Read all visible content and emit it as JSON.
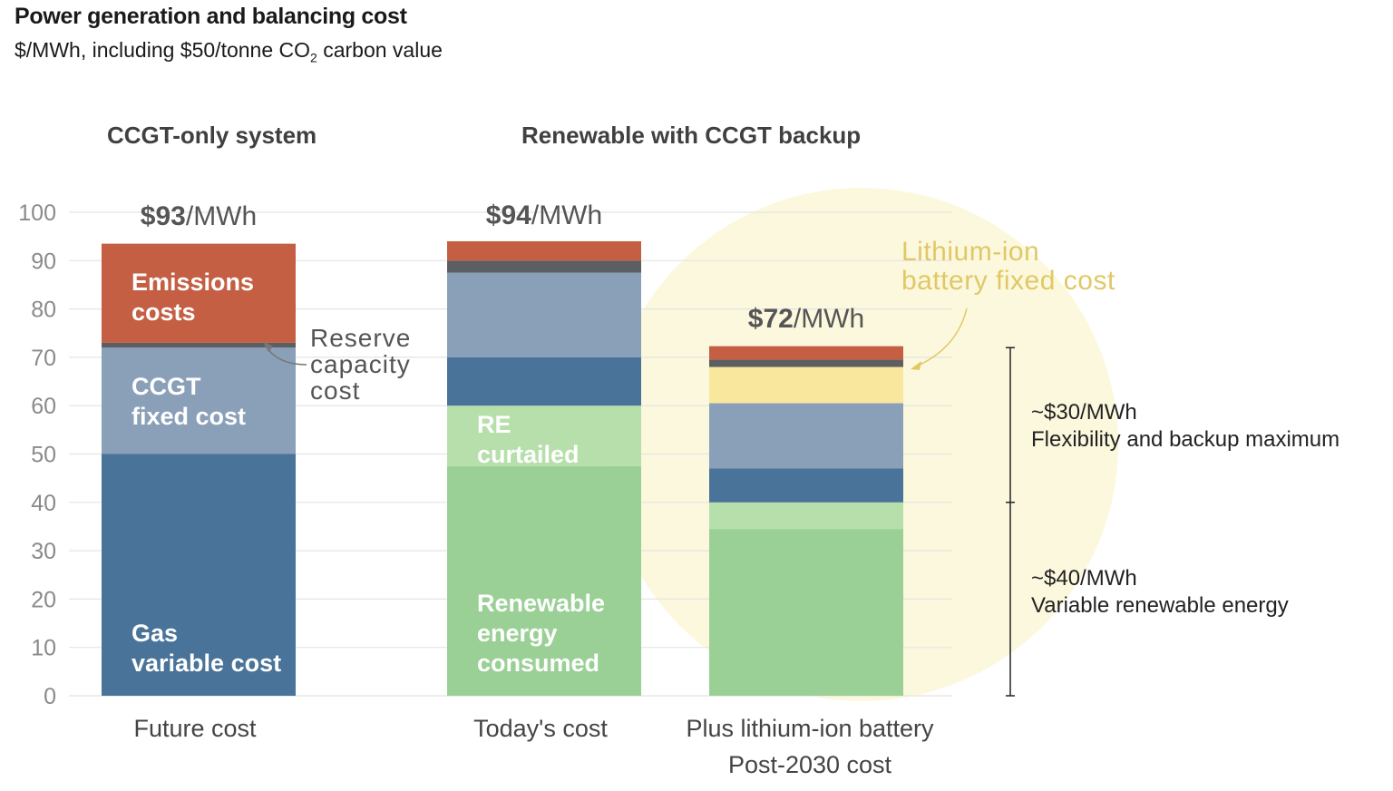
{
  "title": "Power generation and balancing cost",
  "subtitle_before": "$/MWh, including $50/tonne CO",
  "subtitle_sub": "2",
  "subtitle_after": " carbon value",
  "group_titles": [
    "CCGT-only system",
    "Renewable with CCGT backup"
  ],
  "colors": {
    "emissions": "#c45f44",
    "reserve": "#5b5f61",
    "ccgt_fixed": "#8a9fb8",
    "gas_variable": "#4a7399",
    "re_curtailed": "#b7dfab",
    "re_consumed": "#9ad095",
    "battery": "#f9e79d",
    "highlight": "#fcf8dd",
    "annotation_gold": "#e0c866",
    "axis_text": "#8a8a8a"
  },
  "chart_data": {
    "type": "bar",
    "stacked": true,
    "categories": [
      "Future cost",
      "Today's cost",
      "Plus lithium-ion battery\nPost-2030 cost"
    ],
    "ylim": [
      0,
      100
    ],
    "yticks": [
      0,
      10,
      20,
      30,
      40,
      50,
      60,
      70,
      80,
      90,
      100
    ],
    "grid": true,
    "series": [
      {
        "key": "gas_variable",
        "values": [
          50,
          0,
          0
        ]
      },
      {
        "key": "re_consumed",
        "values": [
          0,
          47.5,
          34.5
        ]
      },
      {
        "key": "re_curtailed",
        "values": [
          0,
          12.5,
          5.5
        ]
      },
      {
        "key": "gas_variable",
        "values": [
          0,
          10,
          7
        ]
      },
      {
        "key": "ccgt_fixed",
        "values": [
          22,
          17.5,
          13.5
        ]
      },
      {
        "key": "battery",
        "values": [
          0,
          0,
          7.5
        ]
      },
      {
        "key": "reserve",
        "values": [
          1,
          2.5,
          1.5
        ]
      },
      {
        "key": "emissions",
        "values": [
          20.5,
          4,
          2.8
        ]
      }
    ],
    "totals": [
      {
        "value": "$93",
        "unit": "/MWh"
      },
      {
        "value": "$94",
        "unit": "/MWh"
      },
      {
        "value": "$72",
        "unit": "/MWh"
      }
    ],
    "segment_labels": [
      {
        "bar": 0,
        "lines": [
          "Gas",
          "variable cost"
        ]
      },
      {
        "bar": 0,
        "lines": [
          "CCGT",
          "fixed cost"
        ]
      },
      {
        "bar": 0,
        "lines": [
          "Emissions",
          "costs"
        ]
      },
      {
        "bar": 1,
        "lines": [
          "Renewable",
          "energy",
          "consumed"
        ]
      },
      {
        "bar": 1,
        "lines": [
          "RE",
          "curtailed"
        ]
      }
    ],
    "annotations": {
      "reserve": [
        "Reserve",
        "capacity",
        "cost"
      ],
      "battery": [
        "Lithium-ion",
        "battery fixed cost"
      ],
      "bracket_upper": [
        "~$30/MWh",
        "Flexibility and backup maximum"
      ],
      "bracket_lower": [
        "~$40/MWh",
        "Variable renewable energy"
      ],
      "bracket_range": [
        0,
        40,
        72
      ]
    }
  }
}
